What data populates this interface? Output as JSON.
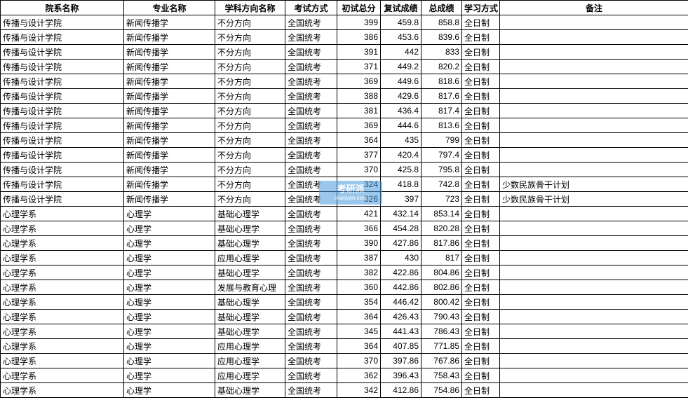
{
  "columns": [
    "院系名称",
    "专业名称",
    "学科方向名称",
    "考试方式",
    "初试总分",
    "复试成绩",
    "总成绩",
    "学习方式",
    "备注"
  ],
  "col_classes": [
    "col-dept",
    "col-major",
    "col-direction",
    "col-exam",
    "col-score1",
    "col-score2",
    "col-total",
    "col-mode",
    "col-remark"
  ],
  "watermark": {
    "line1": "考研派",
    "line2": "okaoyan.com"
  },
  "rows": [
    [
      "传播与设计学院",
      "新闻传播学",
      "不分方向",
      "全国统考",
      "399",
      "459.8",
      "858.8",
      "全日制",
      ""
    ],
    [
      "传播与设计学院",
      "新闻传播学",
      "不分方向",
      "全国统考",
      "386",
      "453.6",
      "839.6",
      "全日制",
      ""
    ],
    [
      "传播与设计学院",
      "新闻传播学",
      "不分方向",
      "全国统考",
      "391",
      "442",
      "833",
      "全日制",
      ""
    ],
    [
      "传播与设计学院",
      "新闻传播学",
      "不分方向",
      "全国统考",
      "371",
      "449.2",
      "820.2",
      "全日制",
      ""
    ],
    [
      "传播与设计学院",
      "新闻传播学",
      "不分方向",
      "全国统考",
      "369",
      "449.6",
      "818.6",
      "全日制",
      ""
    ],
    [
      "传播与设计学院",
      "新闻传播学",
      "不分方向",
      "全国统考",
      "388",
      "429.6",
      "817.6",
      "全日制",
      ""
    ],
    [
      "传播与设计学院",
      "新闻传播学",
      "不分方向",
      "全国统考",
      "381",
      "436.4",
      "817.4",
      "全日制",
      ""
    ],
    [
      "传播与设计学院",
      "新闻传播学",
      "不分方向",
      "全国统考",
      "369",
      "444.6",
      "813.6",
      "全日制",
      ""
    ],
    [
      "传播与设计学院",
      "新闻传播学",
      "不分方向",
      "全国统考",
      "364",
      "435",
      "799",
      "全日制",
      ""
    ],
    [
      "传播与设计学院",
      "新闻传播学",
      "不分方向",
      "全国统考",
      "377",
      "420.4",
      "797.4",
      "全日制",
      ""
    ],
    [
      "传播与设计学院",
      "新闻传播学",
      "不分方向",
      "全国统考",
      "370",
      "425.8",
      "795.8",
      "全日制",
      ""
    ],
    [
      "传播与设计学院",
      "新闻传播学",
      "不分方向",
      "全国统考",
      "324",
      "418.8",
      "742.8",
      "全日制",
      "少数民族骨干计划"
    ],
    [
      "传播与设计学院",
      "新闻传播学",
      "不分方向",
      "全国统考",
      "326",
      "397",
      "723",
      "全日制",
      "少数民族骨干计划"
    ],
    [
      "心理学系",
      "心理学",
      "基础心理学",
      "全国统考",
      "421",
      "432.14",
      "853.14",
      "全日制",
      ""
    ],
    [
      "心理学系",
      "心理学",
      "基础心理学",
      "全国统考",
      "366",
      "454.28",
      "820.28",
      "全日制",
      ""
    ],
    [
      "心理学系",
      "心理学",
      "基础心理学",
      "全国统考",
      "390",
      "427.86",
      "817.86",
      "全日制",
      ""
    ],
    [
      "心理学系",
      "心理学",
      "应用心理学",
      "全国统考",
      "387",
      "430",
      "817",
      "全日制",
      ""
    ],
    [
      "心理学系",
      "心理学",
      "基础心理学",
      "全国统考",
      "382",
      "422.86",
      "804.86",
      "全日制",
      ""
    ],
    [
      "心理学系",
      "心理学",
      "发展与教育心理",
      "全国统考",
      "360",
      "442.86",
      "802.86",
      "全日制",
      ""
    ],
    [
      "心理学系",
      "心理学",
      "基础心理学",
      "全国统考",
      "354",
      "446.42",
      "800.42",
      "全日制",
      ""
    ],
    [
      "心理学系",
      "心理学",
      "基础心理学",
      "全国统考",
      "364",
      "426.43",
      "790.43",
      "全日制",
      ""
    ],
    [
      "心理学系",
      "心理学",
      "基础心理学",
      "全国统考",
      "345",
      "441.43",
      "786.43",
      "全日制",
      ""
    ],
    [
      "心理学系",
      "心理学",
      "应用心理学",
      "全国统考",
      "364",
      "407.85",
      "771.85",
      "全日制",
      ""
    ],
    [
      "心理学系",
      "心理学",
      "应用心理学",
      "全国统考",
      "370",
      "397.86",
      "767.86",
      "全日制",
      ""
    ],
    [
      "心理学系",
      "心理学",
      "应用心理学",
      "全国统考",
      "362",
      "396.43",
      "758.43",
      "全日制",
      ""
    ],
    [
      "心理学系",
      "心理学",
      "基础心理学",
      "全国统考",
      "342",
      "412.86",
      "754.86",
      "全日制",
      ""
    ]
  ]
}
